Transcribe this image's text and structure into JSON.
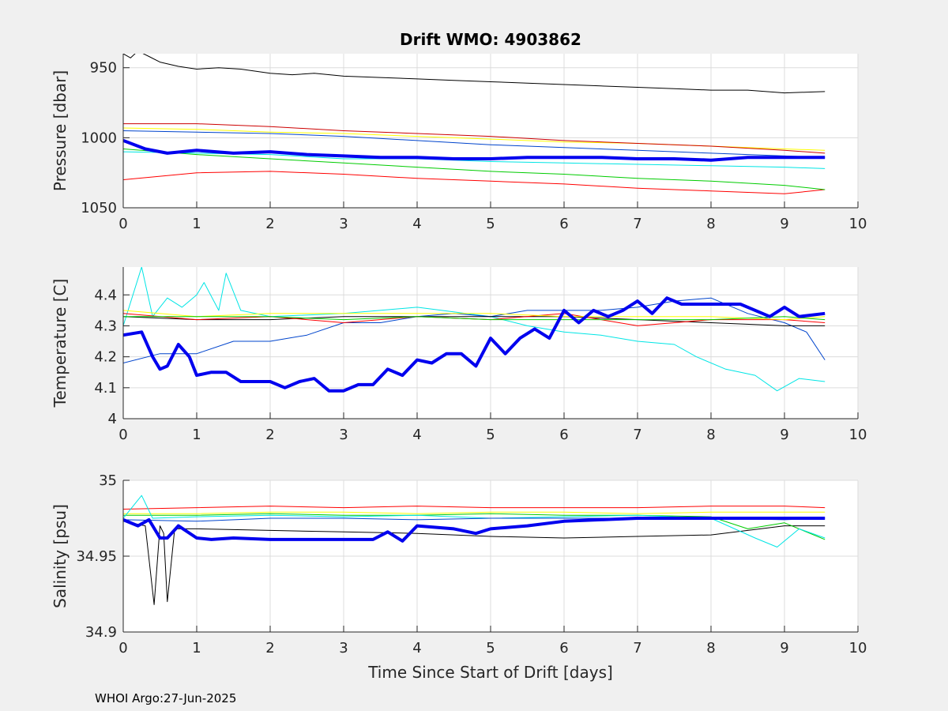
{
  "footer": "WHOI Argo:27-Jun-2025",
  "chart_data": [
    {
      "type": "line",
      "title": "Drift WMO: 4903862",
      "xlabel": "",
      "ylabel": "Pressure [dbar]",
      "xlim": [
        0,
        10
      ],
      "ylim": [
        940,
        1050
      ],
      "y_reversed": true,
      "grid": true,
      "xticks": [
        0,
        1,
        2,
        3,
        4,
        5,
        6,
        7,
        8,
        9,
        10
      ],
      "yticks": [
        950,
        1000,
        1050
      ],
      "series": [
        {
          "color": "#000000",
          "width": 1,
          "x": [
            0,
            0.1,
            0.2,
            0.35,
            0.5,
            0.75,
            1,
            1.3,
            1.6,
            2,
            2.3,
            2.6,
            3,
            3.5,
            4,
            4.5,
            5,
            5.5,
            6,
            6.5,
            7,
            7.5,
            8,
            8.5,
            9,
            9.55
          ],
          "values": [
            940,
            943,
            938,
            942,
            946,
            949,
            951,
            950,
            951,
            954,
            955,
            954,
            956,
            957,
            958,
            959,
            960,
            961,
            962,
            963,
            964,
            965,
            966,
            966,
            968,
            967
          ]
        },
        {
          "color": "#ff0000",
          "width": 1,
          "x": [
            0,
            1,
            2,
            3,
            4,
            5,
            6,
            7,
            8,
            9,
            9.55
          ],
          "values": [
            1030,
            1025,
            1024,
            1026,
            1029,
            1031,
            1033,
            1036,
            1038,
            1040,
            1037
          ]
        },
        {
          "color": "#00cc00",
          "width": 1,
          "x": [
            0,
            1,
            2,
            3,
            4,
            5,
            6,
            7,
            8,
            9,
            9.55
          ],
          "values": [
            1008,
            1012,
            1015,
            1018,
            1021,
            1024,
            1026,
            1029,
            1031,
            1034,
            1037
          ]
        },
        {
          "color": "#00e5e5",
          "width": 1,
          "x": [
            0,
            1,
            2,
            3,
            4,
            5,
            6,
            7,
            8,
            9,
            9.55
          ],
          "values": [
            1010,
            1011,
            1012,
            1015,
            1015,
            1017,
            1018,
            1019,
            1020,
            1021,
            1022
          ]
        },
        {
          "color": "#ffff00",
          "width": 1,
          "x": [
            0,
            1,
            2,
            3,
            4,
            5,
            6,
            7,
            8,
            9,
            9.55
          ],
          "values": [
            993,
            994,
            996,
            997,
            999,
            1001,
            1003,
            1004,
            1006,
            1008,
            1009
          ]
        },
        {
          "color": "#cc0000",
          "width": 1,
          "x": [
            0,
            1,
            2,
            3,
            4,
            5,
            6,
            7,
            8,
            9,
            9.55
          ],
          "values": [
            990,
            990,
            992,
            995,
            997,
            999,
            1002,
            1004,
            1006,
            1009,
            1011
          ]
        },
        {
          "color": "#0044cc",
          "width": 1,
          "x": [
            0,
            1,
            2,
            3,
            4,
            5,
            6,
            7,
            8,
            9,
            9.55
          ],
          "values": [
            995,
            996,
            997,
            999,
            1002,
            1005,
            1007,
            1009,
            1011,
            1013,
            1014
          ]
        },
        {
          "color": "#0000ee",
          "width": 4,
          "x": [
            0,
            0.3,
            0.6,
            1,
            1.5,
            2,
            2.5,
            3,
            3.5,
            4,
            4.5,
            5,
            5.5,
            6,
            6.5,
            7,
            7.5,
            8,
            8.5,
            9,
            9.55
          ],
          "values": [
            1002,
            1008,
            1011,
            1009,
            1011,
            1010,
            1012,
            1013,
            1014,
            1014,
            1015,
            1015,
            1014,
            1014,
            1014,
            1015,
            1015,
            1016,
            1014,
            1014,
            1014
          ]
        }
      ]
    },
    {
      "type": "line",
      "xlabel": "",
      "ylabel": "Temperature [C]",
      "xlim": [
        0,
        10
      ],
      "ylim": [
        4,
        4.49
      ],
      "grid": true,
      "xticks": [
        0,
        1,
        2,
        3,
        4,
        5,
        6,
        7,
        8,
        9,
        10
      ],
      "yticks": [
        4,
        4.1,
        4.2,
        4.3,
        4.4
      ],
      "series": [
        {
          "color": "#00e5e5",
          "width": 1,
          "x": [
            0,
            0.25,
            0.4,
            0.6,
            0.8,
            1,
            1.1,
            1.3,
            1.4,
            1.6,
            2,
            3,
            4,
            5,
            5.5,
            6,
            6.5,
            7,
            7.5,
            7.8,
            8.2,
            8.6,
            8.9,
            9.2,
            9.55
          ],
          "values": [
            4.3,
            4.49,
            4.33,
            4.39,
            4.36,
            4.4,
            4.44,
            4.35,
            4.47,
            4.35,
            4.33,
            4.34,
            4.36,
            4.33,
            4.3,
            4.28,
            4.27,
            4.25,
            4.24,
            4.2,
            4.16,
            4.14,
            4.09,
            4.13,
            4.12
          ]
        },
        {
          "color": "#0044cc",
          "width": 1,
          "x": [
            0,
            0.5,
            1,
            1.5,
            2,
            2.5,
            3,
            3.5,
            4,
            4.5,
            5,
            5.5,
            6,
            6.5,
            7,
            7.5,
            8,
            8.5,
            9,
            9.3,
            9.55
          ],
          "values": [
            4.18,
            4.21,
            4.21,
            4.25,
            4.25,
            4.27,
            4.31,
            4.31,
            4.33,
            4.34,
            4.33,
            4.35,
            4.35,
            4.35,
            4.36,
            4.38,
            4.39,
            4.34,
            4.31,
            4.28,
            4.19
          ]
        },
        {
          "color": "#000000",
          "width": 1,
          "x": [
            0,
            1,
            2,
            3,
            4,
            5,
            6,
            7,
            8,
            9,
            9.55
          ],
          "values": [
            4.33,
            4.32,
            4.32,
            4.33,
            4.33,
            4.33,
            4.33,
            4.32,
            4.31,
            4.3,
            4.3
          ]
        },
        {
          "color": "#ff0000",
          "width": 1,
          "x": [
            0,
            1,
            2,
            3,
            4,
            5,
            6,
            7,
            8,
            9,
            9.55
          ],
          "values": [
            4.34,
            4.32,
            4.33,
            4.31,
            4.33,
            4.32,
            4.34,
            4.3,
            4.32,
            4.32,
            4.31
          ]
        },
        {
          "color": "#ffff00",
          "width": 1,
          "x": [
            0,
            1,
            2,
            3,
            4,
            5,
            6,
            7,
            8,
            9,
            9.55
          ],
          "values": [
            4.35,
            4.33,
            4.34,
            4.34,
            4.34,
            4.34,
            4.33,
            4.33,
            4.33,
            4.32,
            4.33
          ]
        },
        {
          "color": "#00cc00",
          "width": 1,
          "x": [
            0,
            1,
            2,
            3,
            4,
            5,
            6,
            7,
            8,
            9,
            9.55
          ],
          "values": [
            4.33,
            4.33,
            4.33,
            4.32,
            4.33,
            4.32,
            4.32,
            4.32,
            4.32,
            4.33,
            4.32
          ]
        },
        {
          "color": "#0000ee",
          "width": 4,
          "x": [
            0,
            0.25,
            0.4,
            0.5,
            0.6,
            0.75,
            0.9,
            1,
            1.2,
            1.4,
            1.6,
            2,
            2.2,
            2.4,
            2.6,
            2.8,
            3,
            3.2,
            3.4,
            3.6,
            3.8,
            4,
            4.2,
            4.4,
            4.6,
            4.8,
            5,
            5.2,
            5.4,
            5.6,
            5.8,
            6,
            6.2,
            6.4,
            6.6,
            6.8,
            7,
            7.2,
            7.4,
            7.6,
            7.8,
            8,
            8.4,
            8.8,
            9,
            9.2,
            9.55
          ],
          "values": [
            4.27,
            4.28,
            4.2,
            4.16,
            4.17,
            4.24,
            4.2,
            4.14,
            4.15,
            4.15,
            4.12,
            4.12,
            4.1,
            4.12,
            4.13,
            4.09,
            4.09,
            4.11,
            4.11,
            4.16,
            4.14,
            4.19,
            4.18,
            4.21,
            4.21,
            4.17,
            4.26,
            4.21,
            4.26,
            4.29,
            4.26,
            4.35,
            4.31,
            4.35,
            4.33,
            4.35,
            4.38,
            4.34,
            4.39,
            4.37,
            4.37,
            4.37,
            4.37,
            4.33,
            4.36,
            4.33,
            4.34
          ]
        }
      ]
    },
    {
      "type": "line",
      "xlabel": "Time Since Start of Drift [days]",
      "ylabel": "Salinity [psu]",
      "xlim": [
        0,
        10
      ],
      "ylim": [
        34.9,
        35
      ],
      "grid": true,
      "xticks": [
        0,
        1,
        2,
        3,
        4,
        5,
        6,
        7,
        8,
        9,
        10
      ],
      "yticks": [
        34.9,
        34.95,
        35
      ],
      "series": [
        {
          "color": "#000000",
          "width": 1,
          "x": [
            0,
            0.3,
            0.42,
            0.5,
            0.55,
            0.6,
            0.7,
            1,
            2,
            3,
            4,
            5,
            6,
            7,
            8,
            9,
            9.55
          ],
          "values": [
            34.973,
            34.97,
            34.918,
            34.97,
            34.965,
            34.92,
            34.968,
            34.968,
            34.967,
            34.966,
            34.965,
            34.963,
            34.962,
            34.963,
            34.964,
            34.97,
            34.97
          ]
        },
        {
          "color": "#ff0000",
          "width": 1,
          "x": [
            0,
            1,
            2,
            3,
            4,
            5,
            6,
            7,
            8,
            9,
            9.55
          ],
          "values": [
            34.981,
            34.982,
            34.983,
            34.982,
            34.983,
            34.982,
            34.982,
            34.982,
            34.983,
            34.983,
            34.982
          ]
        },
        {
          "color": "#ffff00",
          "width": 1,
          "x": [
            0,
            1,
            2,
            3,
            4,
            5,
            6,
            7,
            8,
            9,
            9.55
          ],
          "values": [
            34.978,
            34.978,
            34.979,
            34.979,
            34.978,
            34.979,
            34.979,
            34.978,
            34.979,
            34.979,
            34.979
          ]
        },
        {
          "color": "#00cc00",
          "width": 1,
          "x": [
            0,
            1,
            2,
            3,
            4,
            5,
            6,
            7,
            8,
            8.5,
            9,
            9.55
          ],
          "values": [
            34.977,
            34.977,
            34.978,
            34.977,
            34.977,
            34.978,
            34.977,
            34.977,
            34.976,
            34.968,
            34.972,
            34.961
          ]
        },
        {
          "color": "#00e5e5",
          "width": 1,
          "x": [
            0,
            0.25,
            0.4,
            1,
            2,
            3,
            4,
            5,
            6,
            7,
            8,
            8.6,
            8.9,
            9.2,
            9.55
          ],
          "values": [
            34.975,
            34.99,
            34.975,
            34.976,
            34.977,
            34.976,
            34.977,
            34.975,
            34.976,
            34.977,
            34.975,
            34.962,
            34.956,
            34.968,
            34.962
          ]
        },
        {
          "color": "#0044cc",
          "width": 1,
          "x": [
            0,
            1,
            2,
            3,
            4,
            5,
            6,
            7,
            8,
            9,
            9.55
          ],
          "values": [
            34.974,
            34.973,
            34.975,
            34.975,
            34.974,
            34.975,
            34.975,
            34.975,
            34.975,
            34.974,
            34.975
          ]
        },
        {
          "color": "#0000ee",
          "width": 4,
          "x": [
            0,
            0.2,
            0.35,
            0.5,
            0.6,
            0.75,
            1,
            1.2,
            1.5,
            2,
            2.5,
            3,
            3.4,
            3.6,
            3.8,
            4,
            4.5,
            4.8,
            5,
            5.5,
            6,
            6.5,
            7,
            7.5,
            8,
            8.5,
            9,
            9.55
          ],
          "values": [
            34.974,
            34.97,
            34.974,
            34.962,
            34.962,
            34.97,
            34.962,
            34.961,
            34.962,
            34.961,
            34.961,
            34.961,
            34.961,
            34.966,
            34.96,
            34.97,
            34.968,
            34.965,
            34.968,
            34.97,
            34.973,
            34.974,
            34.975,
            34.975,
            34.975,
            34.975,
            34.975,
            34.975
          ]
        }
      ]
    }
  ]
}
